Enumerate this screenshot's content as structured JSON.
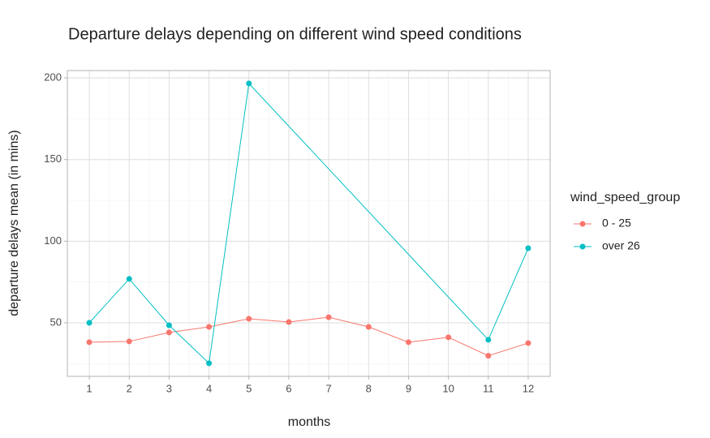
{
  "chart_data": {
    "type": "line",
    "title": "Departure delays depending on different wind speed conditions",
    "x_label": "months",
    "y_label": "departure delays mean (in mins)",
    "legend_title": "wind_speed_group",
    "legend_position": "right",
    "grid": true,
    "xlim": [
      0.45,
      12.55
    ],
    "ylim": [
      17.2,
      204.5
    ],
    "xticks": [
      1,
      2,
      3,
      4,
      5,
      6,
      7,
      8,
      9,
      10,
      11,
      12
    ],
    "yticks": [
      50,
      100,
      150,
      200
    ],
    "series": [
      {
        "name": "0 - 25",
        "color": "#F8766D",
        "x": [
          1,
          2,
          3,
          4,
          5,
          6,
          7,
          8,
          9,
          10,
          11,
          12
        ],
        "values": [
          38.1,
          38.6,
          44.1,
          47.5,
          52.5,
          50.5,
          53.4,
          47.5,
          38.1,
          41.1,
          29.8,
          37.6
        ]
      },
      {
        "name": "over 26",
        "color": "#00BFC4",
        "x": [
          1,
          2,
          3,
          4,
          5,
          11,
          12
        ],
        "values": [
          50,
          76.9,
          48.5,
          25.2,
          196.6,
          39.6,
          95.7
        ]
      }
    ]
  }
}
